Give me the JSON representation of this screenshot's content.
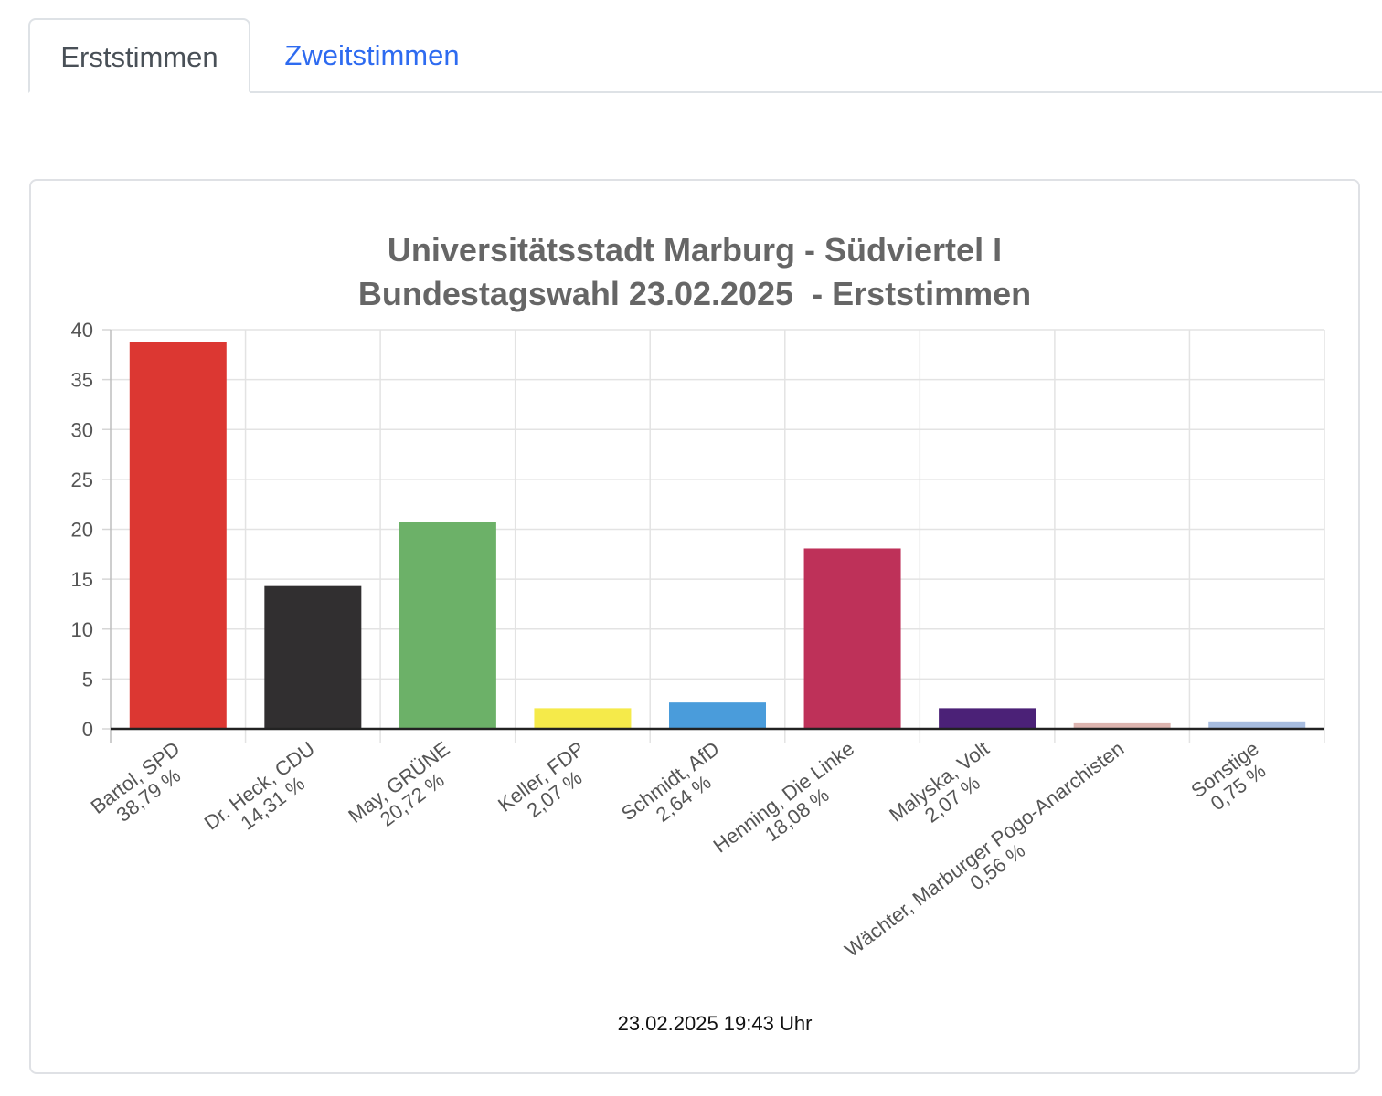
{
  "tabs": [
    {
      "label": "Erststimmen",
      "active": true
    },
    {
      "label": "Zweitstimmen",
      "active": false
    }
  ],
  "chart_data": {
    "type": "bar",
    "title_lines": [
      "Universitätsstadt Marburg - Südviertel I",
      "Bundestagswahl 23.02.2025  - Erststimmen"
    ],
    "ylim": [
      0,
      40
    ],
    "y_ticks": [
      "0",
      "5",
      "10",
      "15",
      "20",
      "25",
      "30",
      "35",
      "40"
    ],
    "grid": true,
    "legend": "none",
    "bars": [
      {
        "name": "Bartol, SPD",
        "pct_label": "38,79 %",
        "value": 38.79,
        "color": "#dc3732"
      },
      {
        "name": "Dr. Heck, CDU",
        "pct_label": "14,31 %",
        "value": 14.31,
        "color": "#312f30"
      },
      {
        "name": "May, GRÜNE",
        "pct_label": "20,72 %",
        "value": 20.72,
        "color": "#6cb168"
      },
      {
        "name": "Keller, FDP",
        "pct_label": "2,07 %",
        "value": 2.07,
        "color": "#f5ea4a"
      },
      {
        "name": "Schmidt, AfD",
        "pct_label": "2,64 %",
        "value": 2.64,
        "color": "#4a9cdb"
      },
      {
        "name": "Henning, Die Linke",
        "pct_label": "18,08 %",
        "value": 18.08,
        "color": "#be3159"
      },
      {
        "name": "Malyska, Volt",
        "pct_label": "2,07 %",
        "value": 2.07,
        "color": "#4b2177"
      },
      {
        "name": "Wächter, Marburger Pogo-Anarchisten",
        "pct_label": "0,56 %",
        "value": 0.56,
        "color": "#ddb5b0"
      },
      {
        "name": "Sonstige",
        "pct_label": "0,75 %",
        "value": 0.75,
        "color": "#a8bde0"
      }
    ]
  },
  "footer": {
    "timestamp": "23.02.2025 19:43 Uhr"
  }
}
